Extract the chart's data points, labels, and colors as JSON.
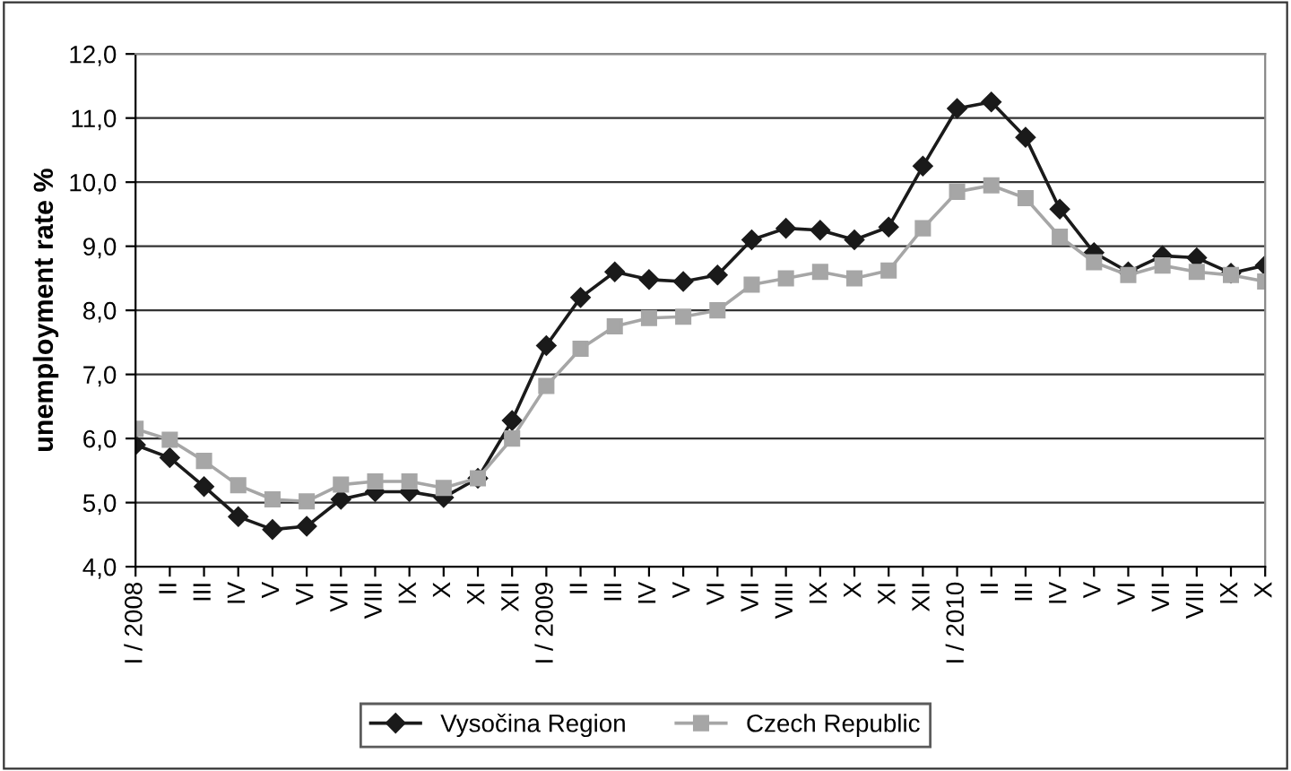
{
  "chart_data": {
    "type": "line",
    "ylabel": "unemployment rate %",
    "categories": [
      "I / 2008",
      "II",
      "III",
      "IV",
      "V",
      "VI",
      "VII",
      "VIII",
      "IX",
      "X",
      "XI",
      "XII",
      "I / 2009",
      "II",
      "III",
      "IV",
      "V",
      "VI",
      "VII",
      "VIII",
      "IX",
      "X",
      "XI",
      "XII",
      "I / 2010",
      "II",
      "III",
      "IV",
      "V",
      "VI",
      "VII",
      "VIII",
      "IX",
      "X"
    ],
    "series": [
      {
        "name": "Vysočina Region",
        "color": "#1a1a1a",
        "marker": "diamond",
        "values": [
          5.9,
          5.7,
          5.25,
          4.78,
          4.58,
          4.63,
          5.05,
          5.17,
          5.17,
          5.08,
          5.38,
          6.28,
          7.45,
          8.2,
          8.6,
          8.48,
          8.45,
          8.55,
          9.1,
          9.28,
          9.25,
          9.1,
          9.3,
          10.25,
          11.15,
          11.25,
          10.7,
          9.58,
          8.9,
          8.6,
          8.85,
          8.82,
          8.58,
          8.7
        ]
      },
      {
        "name": "Czech Republic",
        "color": "#a6a6a6",
        "marker": "square",
        "values": [
          6.15,
          5.98,
          5.65,
          5.27,
          5.05,
          5.02,
          5.28,
          5.33,
          5.33,
          5.23,
          5.38,
          6.0,
          6.82,
          7.4,
          7.75,
          7.88,
          7.9,
          8.0,
          8.4,
          8.5,
          8.6,
          8.5,
          8.62,
          9.28,
          9.85,
          9.95,
          9.75,
          9.15,
          8.75,
          8.55,
          8.7,
          8.6,
          8.55,
          8.45
        ]
      }
    ],
    "ylim": [
      4,
      12
    ],
    "yticks": [
      {
        "value": 4,
        "label": "4,0"
      },
      {
        "value": 5,
        "label": "5,0"
      },
      {
        "value": 6,
        "label": "6,0"
      },
      {
        "value": 7,
        "label": "7,0"
      },
      {
        "value": 8,
        "label": "8,0"
      },
      {
        "value": 9,
        "label": "9,0"
      },
      {
        "value": 10,
        "label": "10,0"
      },
      {
        "value": 11,
        "label": "11,0"
      },
      {
        "value": 12,
        "label": "12,0"
      }
    ],
    "grid": "y",
    "legend": "bottom",
    "line_style": "solid"
  }
}
